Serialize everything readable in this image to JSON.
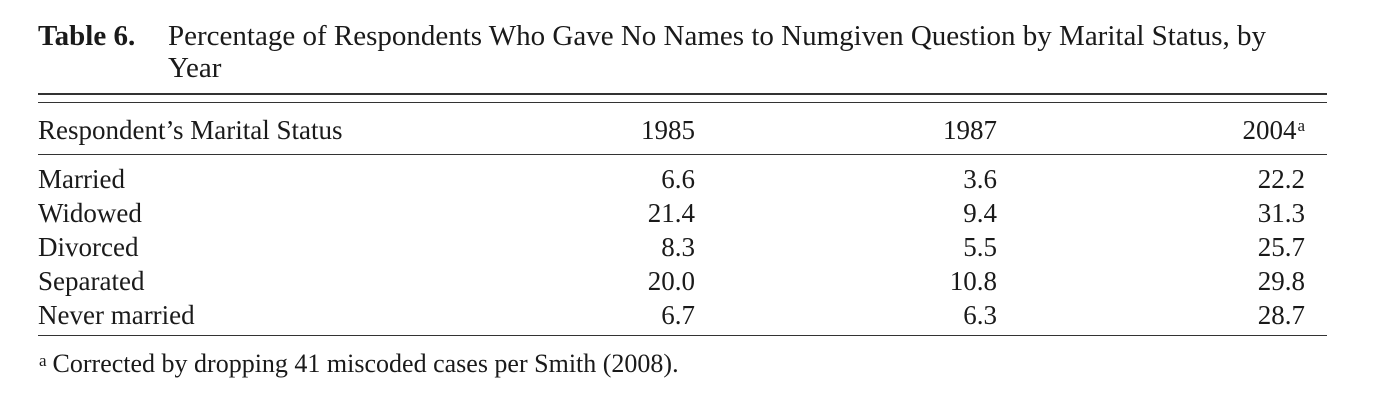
{
  "table": {
    "label": "Table 6.",
    "title": "Percentage of Respondents Who Gave No Names to Numgiven Question by Marital Status, by Year",
    "columns": [
      {
        "label": "Respondent’s Marital Status",
        "mark": ""
      },
      {
        "label": "1985",
        "mark": ""
      },
      {
        "label": "1987",
        "mark": ""
      },
      {
        "label": "2004",
        "mark": "a"
      }
    ],
    "rows": [
      {
        "status": "Married",
        "y1985": "6.6",
        "y1987": "3.6",
        "y2004": "22.2"
      },
      {
        "status": "Widowed",
        "y1985": "21.4",
        "y1987": "9.4",
        "y2004": "31.3"
      },
      {
        "status": "Divorced",
        "y1985": "8.3",
        "y1987": "5.5",
        "y2004": "25.7"
      },
      {
        "status": "Separated",
        "y1985": "20.0",
        "y1987": "10.8",
        "y2004": "29.8"
      },
      {
        "status": "Never married",
        "y1985": "6.7",
        "y1987": "6.3",
        "y2004": "28.7"
      }
    ],
    "footnote": {
      "mark": "a",
      "text": "Corrected by dropping 41 miscoded cases per Smith (2008)."
    }
  }
}
